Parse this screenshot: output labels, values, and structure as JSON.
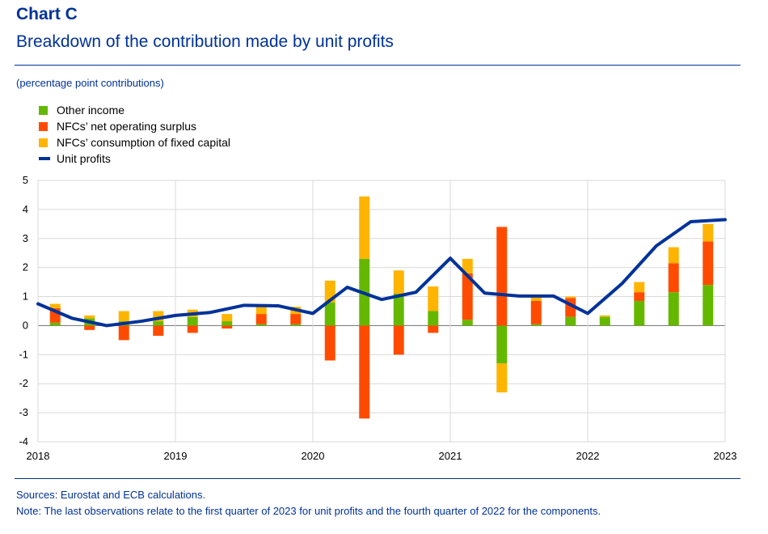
{
  "header": {
    "chart_label": "Chart C",
    "title": "Breakdown of the contribution made by unit profits",
    "units": "(percentage point contributions)"
  },
  "footer": {
    "sources": "Sources: Eurostat and ECB calculations.",
    "note": "Note: The last observations relate to the first quarter of 2023 for unit profits and the fourth quarter of 2022 for the components."
  },
  "colors": {
    "other_income": "#65b800",
    "net_operating_surplus": "#ff4b00",
    "consumption_fixed_capital": "#ffb400",
    "unit_profits": "#003299",
    "grid": "#d9d9d9",
    "zero_line": "#808080"
  },
  "chart_data": {
    "type": "bar",
    "legend_position": "top-left",
    "grid": true,
    "ylim": [
      -4,
      5
    ],
    "yticks": [
      5,
      4,
      3,
      2,
      1,
      0,
      -1,
      -2,
      -3,
      -4
    ],
    "xlim": [
      2018,
      2023
    ],
    "xticks": [
      "2018",
      "2019",
      "2020",
      "2021",
      "2022",
      "2023"
    ],
    "categories": [
      "2018 Q1",
      "2018 Q2",
      "2018 Q3",
      "2018 Q4",
      "2019 Q1",
      "2019 Q2",
      "2019 Q3",
      "2019 Q4",
      "2020 Q1",
      "2020 Q2",
      "2020 Q3",
      "2020 Q4",
      "2021 Q1",
      "2021 Q2",
      "2021 Q3",
      "2021 Q4",
      "2022 Q1",
      "2022 Q2",
      "2022 Q3",
      "2022 Q4"
    ],
    "series": [
      {
        "name": "Other income",
        "key": "other_income",
        "values": [
          0.1,
          0.25,
          0.15,
          0.15,
          0.3,
          0.15,
          0.05,
          0.05,
          0.8,
          2.3,
          1.1,
          0.5,
          0.2,
          -1.3,
          0.05,
          0.3,
          0.3,
          0.85,
          1.15,
          1.4
        ]
      },
      {
        "name": "NFCs’ net operating surplus",
        "key": "net_operating_surplus",
        "values": [
          0.5,
          -0.15,
          -0.5,
          -0.35,
          -0.25,
          -0.1,
          0.35,
          0.35,
          -1.2,
          -3.2,
          -1.0,
          -0.25,
          1.6,
          3.4,
          0.8,
          0.65,
          0.0,
          0.3,
          1.0,
          1.5
        ]
      },
      {
        "name": "NFCs’ consumption of fixed capital",
        "key": "consumption_fixed_capital",
        "values": [
          0.15,
          0.1,
          0.35,
          0.35,
          0.25,
          0.25,
          0.25,
          0.25,
          0.75,
          2.15,
          0.8,
          0.85,
          0.5,
          -1.0,
          0.15,
          0.05,
          0.05,
          0.35,
          0.55,
          0.6
        ]
      }
    ],
    "line": {
      "name": "Unit profits",
      "key": "unit_profits",
      "x": [
        2018.0,
        2018.25,
        2018.5,
        2018.75,
        2019.0,
        2019.25,
        2019.5,
        2019.75,
        2020.0,
        2020.25,
        2020.5,
        2020.75,
        2021.0,
        2021.25,
        2021.5,
        2021.75,
        2022.0,
        2022.25,
        2022.5,
        2022.75,
        2023.0
      ],
      "values": [
        0.75,
        0.25,
        0.0,
        0.15,
        0.35,
        0.45,
        0.7,
        0.68,
        0.42,
        1.32,
        0.9,
        1.15,
        2.32,
        1.12,
        1.02,
        1.02,
        0.42,
        1.45,
        2.75,
        3.58,
        3.65
      ]
    }
  }
}
